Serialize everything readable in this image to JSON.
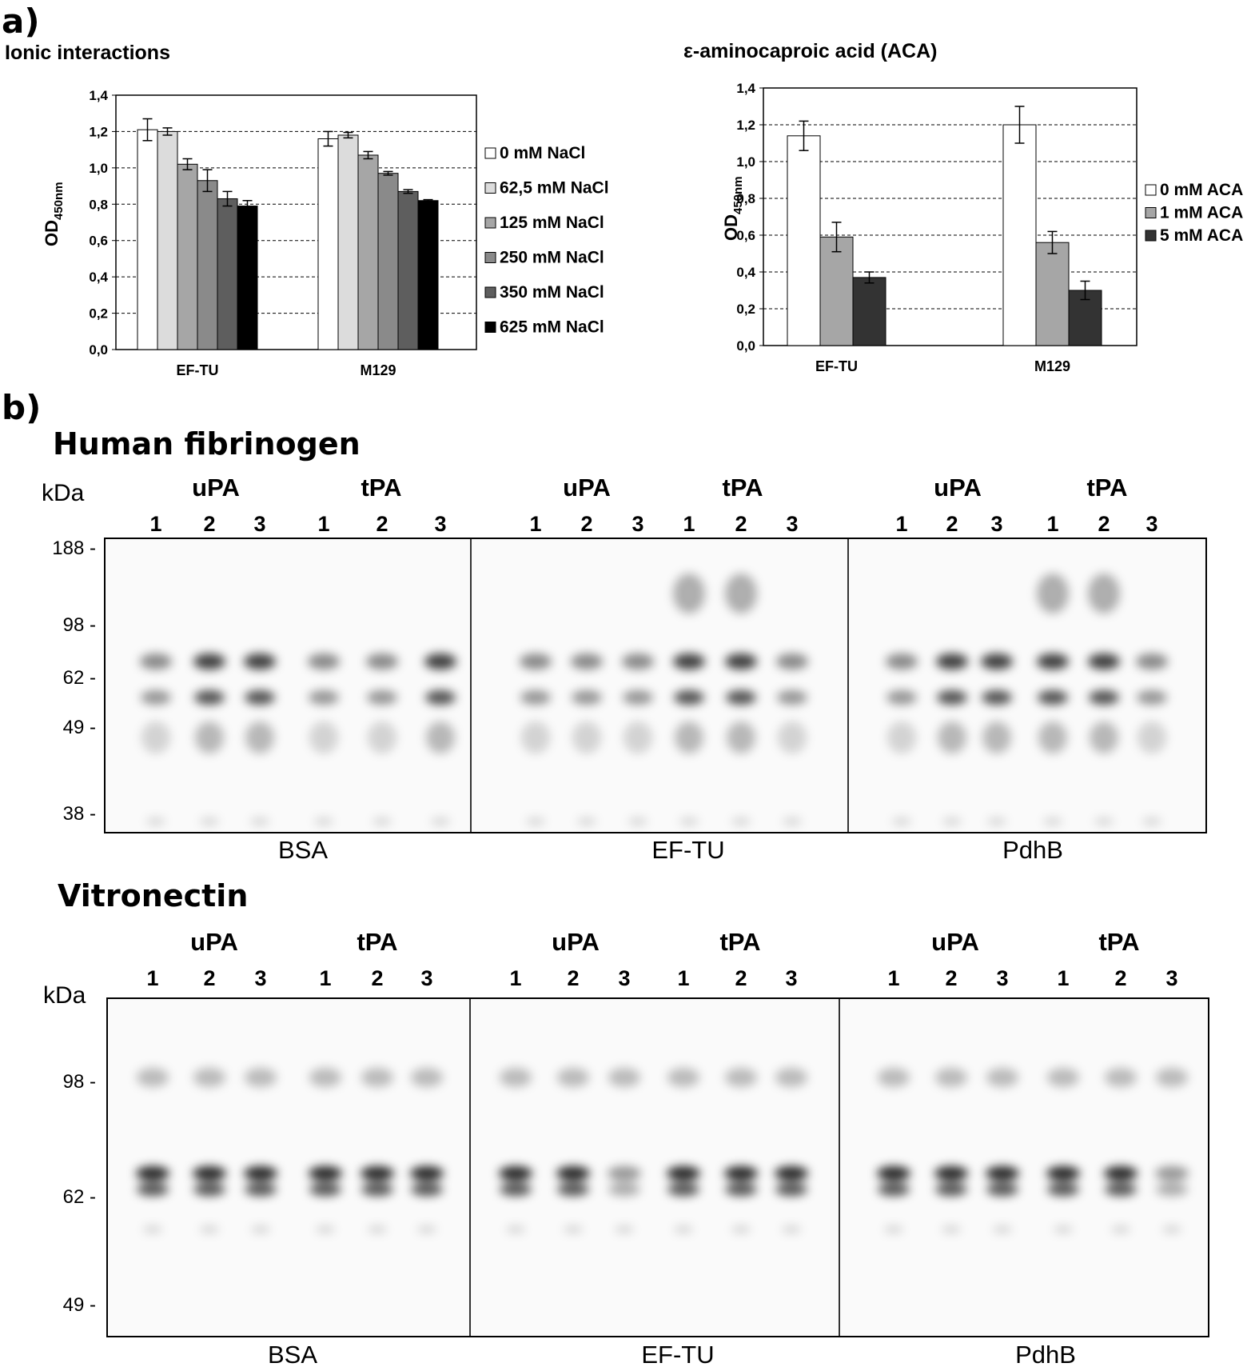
{
  "panel_a_label": "a)",
  "panel_b_label": "b)",
  "chart_data": [
    {
      "type": "bar",
      "title": "Ionic interactions",
      "ylabel_main": "OD",
      "ylabel_sub": "450nm",
      "categories": [
        "EF-TU",
        "M129"
      ],
      "ylim": [
        0,
        1.4
      ],
      "yticks": [
        "0,0",
        "0,2",
        "0,4",
        "0,6",
        "0,8",
        "1,0",
        "1,2",
        "1,4"
      ],
      "grid": true,
      "legend_position": "right",
      "series": [
        {
          "name": "0 mM NaCl",
          "color": "#ffffff",
          "values": [
            1.21,
            1.16
          ],
          "errors": [
            0.06,
            0.04
          ]
        },
        {
          "name": "62,5 mM NaCl",
          "color": "#dcdcdc",
          "values": [
            1.2,
            1.18
          ],
          "errors": [
            0.02,
            0.015
          ]
        },
        {
          "name": "125 mM NaCl",
          "color": "#a6a6a6",
          "values": [
            1.02,
            1.07
          ],
          "errors": [
            0.03,
            0.02
          ]
        },
        {
          "name": "250 mM NaCl",
          "color": "#8a8a8a",
          "values": [
            0.93,
            0.97
          ],
          "errors": [
            0.06,
            0.01
          ]
        },
        {
          "name": "350 mM NaCl",
          "color": "#5e5e5e",
          "values": [
            0.83,
            0.87
          ],
          "errors": [
            0.04,
            0.01
          ]
        },
        {
          "name": "625 mM NaCl",
          "color": "#000000",
          "values": [
            0.79,
            0.82
          ],
          "errors": [
            0.03,
            0.005
          ]
        }
      ]
    },
    {
      "type": "bar",
      "title": "ε-aminocaproic acid (ACA)",
      "ylabel_main": "OD",
      "ylabel_sub": "450nm",
      "categories": [
        "EF-TU",
        "M129"
      ],
      "ylim": [
        0,
        1.4
      ],
      "yticks": [
        "0,0",
        "0,2",
        "0,4",
        "0,6",
        "0,8",
        "1,0",
        "1,2",
        "1,4"
      ],
      "grid": true,
      "legend_position": "right",
      "series": [
        {
          "name": "0 mM ACA",
          "color": "#ffffff",
          "values": [
            1.14,
            1.2
          ],
          "errors": [
            0.08,
            0.1
          ]
        },
        {
          "name": "1 mM ACA",
          "color": "#a6a6a6",
          "values": [
            0.59,
            0.56
          ],
          "errors": [
            0.08,
            0.06
          ]
        },
        {
          "name": "5 mM ACA",
          "color": "#333333",
          "values": [
            0.37,
            0.3
          ],
          "errors": [
            0.03,
            0.05
          ]
        }
      ]
    }
  ],
  "blots": [
    {
      "title": "Human fibrinogen",
      "kda_label": "kDa",
      "groups": [
        "uPA",
        "tPA",
        "uPA",
        "tPA",
        "uPA",
        "tPA"
      ],
      "lanes": [
        "1",
        "2",
        "3",
        "1",
        "2",
        "3",
        "1",
        "2",
        "3",
        "1",
        "2",
        "3",
        "1",
        "2",
        "3",
        "1",
        "2",
        "3"
      ],
      "markers": [
        "188 -",
        "98 -",
        "62 -",
        "49 -",
        "38 -"
      ],
      "panel_labels": [
        "BSA",
        "EF-TU",
        "PdhB"
      ]
    },
    {
      "title": "Vitronectin",
      "kda_label": "kDa",
      "groups": [
        "uPA",
        "tPA",
        "uPA",
        "tPA",
        "uPA",
        "tPA"
      ],
      "lanes": [
        "1",
        "2",
        "3",
        "1",
        "2",
        "3",
        "1",
        "2",
        "3",
        "1",
        "2",
        "3",
        "1",
        "2",
        "3",
        "1",
        "2",
        "3"
      ],
      "markers": [
        "98 -",
        "62 -",
        "49 -"
      ],
      "panel_labels": [
        "BSA",
        "EF-TU",
        "PdhB"
      ]
    }
  ]
}
